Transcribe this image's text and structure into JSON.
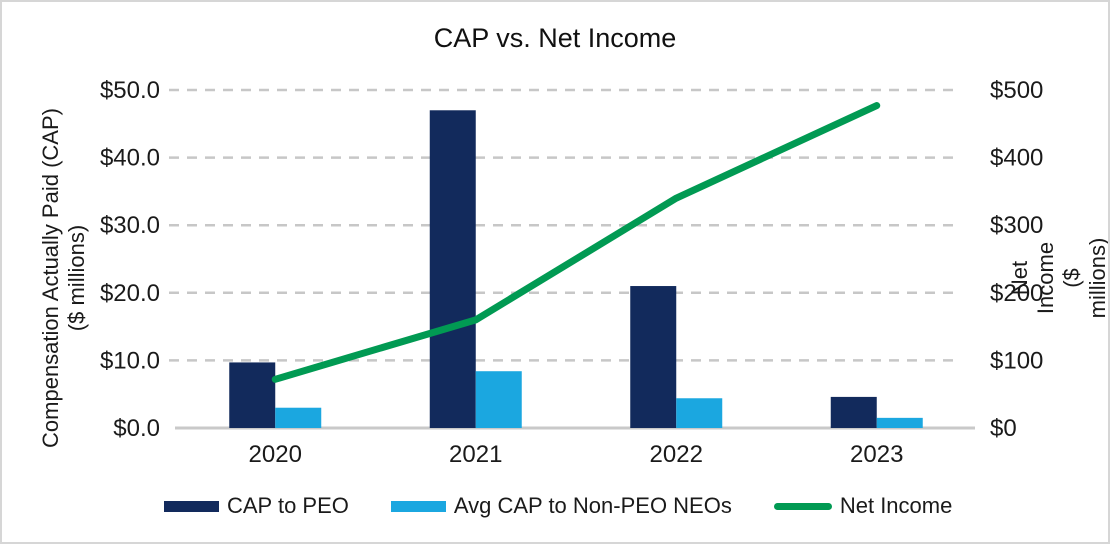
{
  "chart_data": {
    "type": "combo-bar-line",
    "title": "CAP vs. Net Income",
    "categories": [
      "2020",
      "2021",
      "2022",
      "2023"
    ],
    "series": [
      {
        "name": "CAP to PEO",
        "kind": "bar",
        "axis": "left",
        "color": "#122A5C",
        "values": [
          9.7,
          47.0,
          21.0,
          4.6
        ]
      },
      {
        "name": "Avg CAP to Non-PEO NEOs",
        "kind": "bar",
        "axis": "left",
        "color": "#1BA7E0",
        "values": [
          3.0,
          8.4,
          4.4,
          1.5
        ]
      },
      {
        "name": "Net Income",
        "kind": "line",
        "axis": "right",
        "color": "#019A53",
        "values": [
          72,
          160,
          340,
          477
        ]
      }
    ],
    "left_axis": {
      "title": "Compensation Actually Paid (CAP)\n($ millions)",
      "min": 0,
      "max": 50,
      "step": 10,
      "tick_labels": [
        "$0.0",
        "$10.0",
        "$20.0",
        "$30.0",
        "$40.0",
        "$50.0"
      ]
    },
    "right_axis": {
      "title": "Net Income ($ millions)",
      "min": 0,
      "max": 500,
      "step": 100,
      "tick_labels": [
        "$0",
        "$100",
        "$200",
        "$300",
        "$400",
        "$500"
      ]
    },
    "grid": true,
    "legend_position": "bottom"
  },
  "style": {
    "gridline_color": "#C7C7C7",
    "axis_line_color": "#C9C9C9",
    "text_color": "#1A1A1A",
    "background": "#FFFFFF",
    "frame_border_color": "#D6D6D6"
  }
}
